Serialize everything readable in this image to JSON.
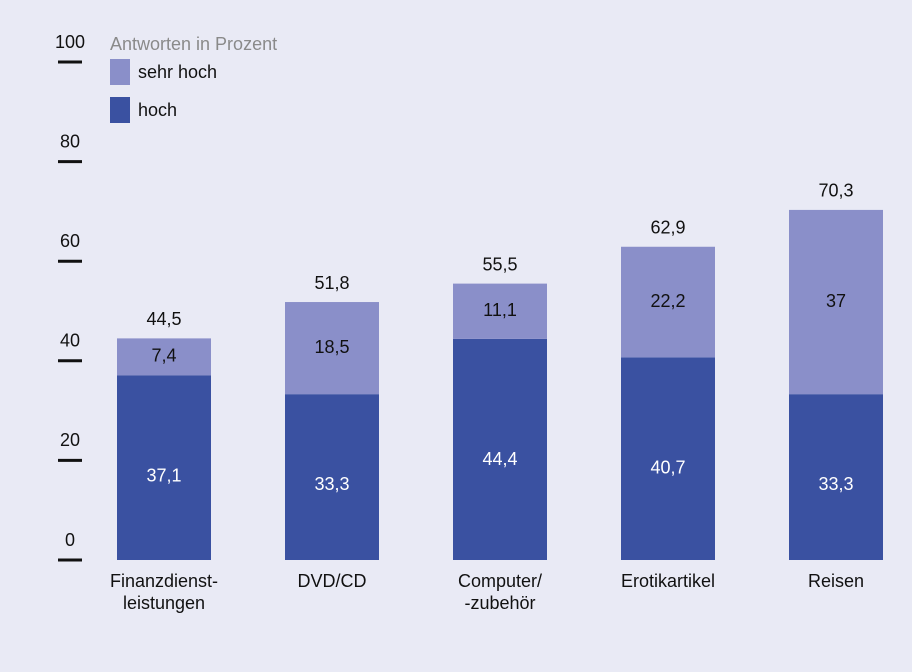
{
  "chart_data": {
    "type": "stacked_bar",
    "subtitle": "Antworten in Prozent",
    "categories": [
      "Finanzdienst-\nleistungen",
      "DVD/CD",
      "Computer/\n-zubehör",
      "Erotikartikel",
      "Reisen"
    ],
    "series": [
      {
        "name": "hoch",
        "color": "#3a51a1",
        "values": [
          37.1,
          33.3,
          44.4,
          40.7,
          33.3
        ],
        "value_labels": [
          "37,1",
          "33,3",
          "44,4",
          "40,7",
          "33,3"
        ]
      },
      {
        "name": "sehr hoch",
        "color": "#8a8fc9",
        "values": [
          7.4,
          18.5,
          11.1,
          22.2,
          37
        ],
        "value_labels": [
          "7,4",
          "18,5",
          "11,1",
          "22,2",
          "37"
        ]
      }
    ],
    "totals": [
      44.5,
      51.8,
      55.5,
      62.9,
      70.3
    ],
    "total_labels": [
      "44,5",
      "51,8",
      "55,5",
      "62,9",
      "70,3"
    ],
    "ylim": [
      0,
      100
    ],
    "yticks": [
      0,
      20,
      40,
      60,
      80,
      100
    ]
  }
}
